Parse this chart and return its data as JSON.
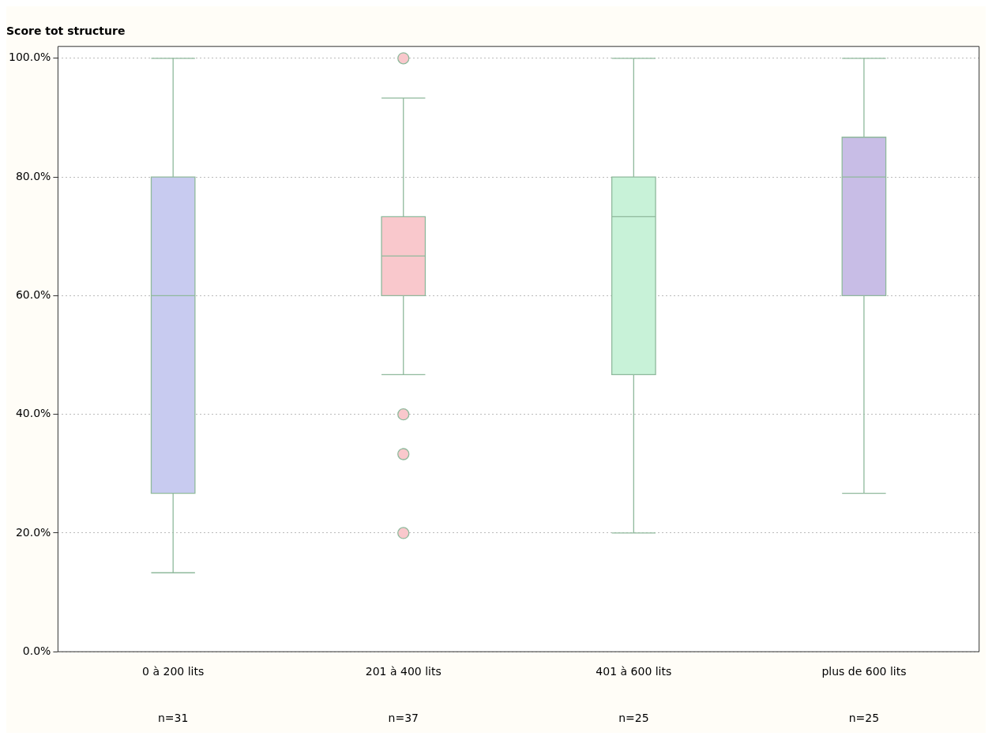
{
  "chart_data": {
    "type": "box",
    "title": "Score tot structure",
    "categories": [
      "0 à 200 lits",
      "201 à 400 lits",
      "401 à 600 lits",
      "plus de 600 lits"
    ],
    "colors": [
      "#c8cbf0",
      "#f9c8cc",
      "#c8f2d8",
      "#c8bde6"
    ],
    "boxes": [
      {
        "low": 13.3,
        "q1": 26.7,
        "median": 60,
        "q3": 80,
        "high": 100
      },
      {
        "low": 46.7,
        "q1": 60,
        "median": 66.7,
        "q3": 73.3,
        "high": 93.3,
        "outliers": [
          100,
          40,
          33.3,
          20
        ]
      },
      {
        "low": 20,
        "q1": 46.7,
        "median": 73.3,
        "q3": 80,
        "high": 100
      },
      {
        "low": 26.7,
        "q1": 60,
        "median": 80,
        "q3": 86.7,
        "high": 100
      }
    ],
    "ylim": [
      0,
      102
    ],
    "yticks": [
      {
        "value": 0,
        "label": "0.0%"
      },
      {
        "value": 20,
        "label": "20.0%"
      },
      {
        "value": 40,
        "label": "40.0%"
      },
      {
        "value": 60,
        "label": "60.0%"
      },
      {
        "value": 80,
        "label": "80.0%"
      },
      {
        "value": 100,
        "label": "100.0%"
      }
    ],
    "grid": "y",
    "legend": false,
    "annotations": [
      "n=31",
      "n=37",
      "n=25",
      "n=25"
    ]
  }
}
